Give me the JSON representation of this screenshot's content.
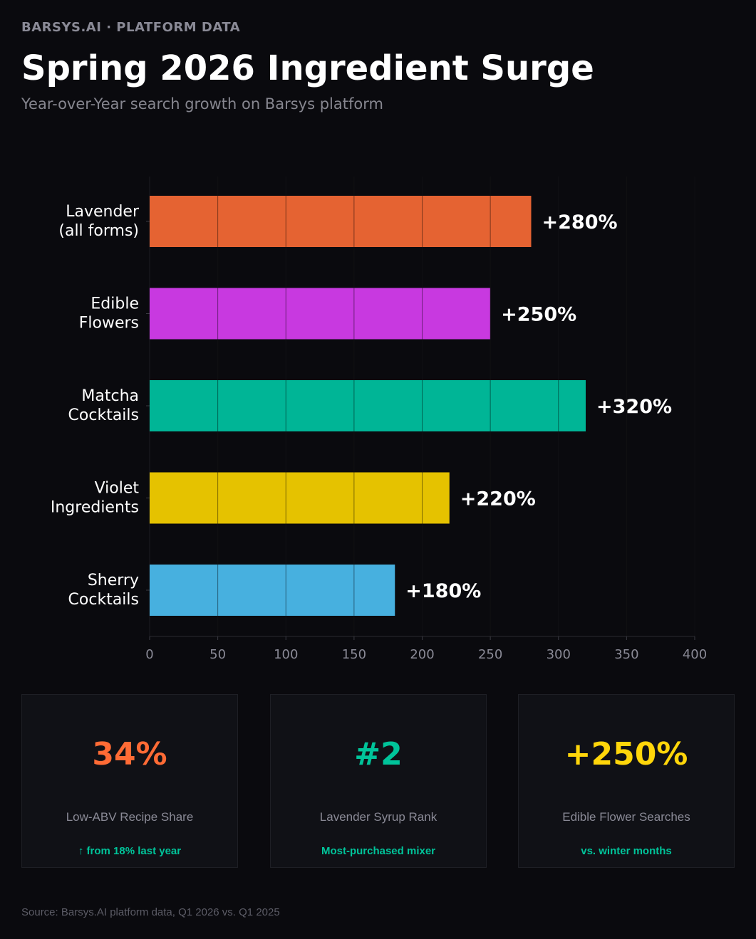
{
  "header": {
    "eyebrow": "BARSYS.AI  ·  PLATFORM DATA",
    "title": "Spring 2026 Ingredient Surge",
    "subtitle": "Year-over-Year search growth on Barsys platform"
  },
  "chart_data": {
    "type": "bar",
    "orientation": "horizontal",
    "title": "",
    "xlabel": "",
    "ylabel": "",
    "xlim": [
      0,
      400
    ],
    "xticks": [
      0,
      50,
      100,
      150,
      200,
      250,
      300,
      350,
      400
    ],
    "grid": true,
    "categories": [
      [
        "Lavender",
        "(all forms)"
      ],
      [
        "Edible",
        "Flowers"
      ],
      [
        "Matcha",
        "Cocktails"
      ],
      [
        "Violet",
        "Ingredients"
      ],
      [
        "Sherry",
        "Cocktails"
      ]
    ],
    "values": [
      280,
      250,
      320,
      220,
      180
    ],
    "data_labels": [
      "+280%",
      "+250%",
      "+320%",
      "+220%",
      "+180%"
    ],
    "colors": [
      "#e56332",
      "#c839e0",
      "#00b596",
      "#e5c200",
      "#47b0df"
    ]
  },
  "stats": [
    {
      "value": "34%",
      "label": "Low-ABV Recipe Share",
      "note": "↑ from 18% last year",
      "color": "#ff6b35"
    },
    {
      "value": "#2",
      "label": "Lavender Syrup Rank",
      "note": "Most-purchased mixer",
      "color": "#00c49a"
    },
    {
      "value": "+250%",
      "label": "Edible Flower Searches",
      "note": "vs. winter months",
      "color": "#ffd60a"
    }
  ],
  "footer": {
    "source": "Source: Barsys.AI platform data, Q1 2026 vs. Q1 2025"
  }
}
